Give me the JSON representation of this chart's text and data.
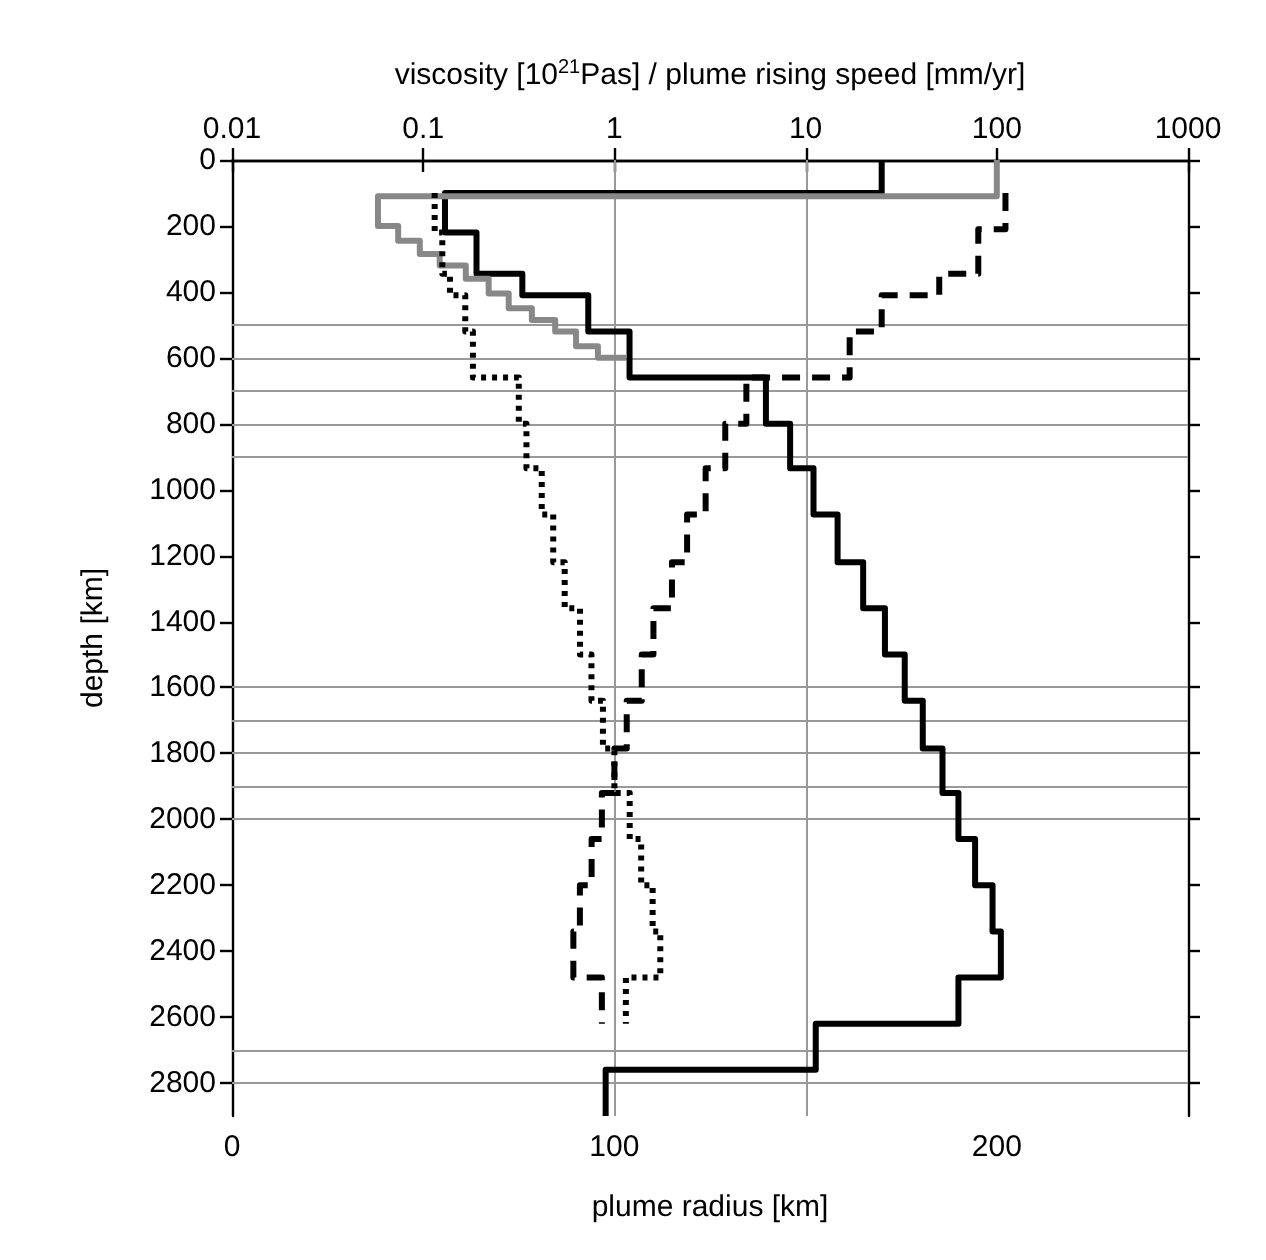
{
  "chart_data": {
    "type": "line",
    "xlabel": "plume radius [km]",
    "x2label": "viscosity [10$^{21}$Pas] / plume rising speed [mm/yr]",
    "ylabel": "depth [km]",
    "xlim": [
      0,
      250
    ],
    "xticks": [
      0,
      {
        "value": 50,
        "label": null
      },
      100,
      {
        "value": 150,
        "label": null
      },
      200,
      {
        "value": 250,
        "label": null
      }
    ],
    "x2lim": [
      0.01,
      1000
    ],
    "x2ticks": [
      0.01,
      0.1,
      1,
      10,
      100,
      1000
    ],
    "ylim": [
      2900,
      0
    ],
    "yticks": [
      0,
      200,
      400,
      600,
      800,
      1000,
      1200,
      1400,
      1600,
      1800,
      2000,
      2200,
      2400,
      2600,
      2800
    ],
    "log": "x2",
    "series": [
      {
        "axis": "x2",
        "color": "#000000",
        "line_style": "solid",
        "x": [
          25,
          25,
          0.13,
          0.13,
          0.19,
          0.19,
          0.33,
          0.33,
          0.73,
          0.73,
          1.2,
          1.2,
          6.2,
          6.2,
          8.3,
          8.3,
          11,
          11,
          14.7,
          14.7,
          20,
          20,
          26,
          26,
          33,
          33,
          41,
          41,
          52,
          52,
          63,
          63,
          77,
          77,
          95,
          95,
          105,
          105,
          63,
          63,
          11.3,
          11.3,
          0.9,
          0.9
        ],
        "values": [
          0,
          100,
          100,
          220,
          220,
          345,
          345,
          410,
          410,
          520,
          520,
          660,
          660,
          800,
          800,
          935,
          935,
          1075,
          1075,
          1220,
          1220,
          1360,
          1360,
          1500,
          1500,
          1640,
          1640,
          1785,
          1785,
          1920,
          1920,
          2060,
          2060,
          2200,
          2200,
          2340,
          2340,
          2480,
          2480,
          2620,
          2620,
          2760,
          2760,
          2900
        ]
      },
      {
        "axis": "x2",
        "color": "#888888",
        "line_style": "solid",
        "x": [
          100,
          100,
          0.058,
          0.058,
          0.074,
          0.074,
          0.096,
          0.096,
          0.122,
          0.122,
          0.167,
          0.167,
          0.22,
          0.22,
          0.28,
          0.28,
          0.37,
          0.37,
          0.49,
          0.49,
          0.63,
          0.63,
          0.82,
          0.82,
          1.15
        ],
        "values": [
          0,
          110,
          110,
          200,
          200,
          245,
          245,
          285,
          285,
          320,
          320,
          360,
          360,
          405,
          405,
          450,
          450,
          485,
          485,
          520,
          520,
          565,
          565,
          600,
          600
        ]
      },
      {
        "axis": "x2",
        "color": "#000000",
        "line_style": "dashed",
        "x": [
          111,
          111,
          80,
          80,
          50,
          50,
          25,
          25,
          17,
          17,
          4.9,
          4.9,
          3.8,
          3.8,
          3.0,
          3.0,
          2.4,
          2.4,
          2.0,
          2.0,
          1.6,
          1.6,
          1.39,
          1.39,
          1.16,
          1.16,
          1.0,
          1.0,
          0.86,
          0.86,
          0.76,
          0.76,
          0.66,
          0.66,
          0.61,
          0.61,
          0.86,
          0.86
        ],
        "values": [
          100,
          210,
          210,
          345,
          345,
          410,
          410,
          520,
          520,
          660,
          660,
          800,
          800,
          935,
          935,
          1075,
          1075,
          1220,
          1220,
          1360,
          1360,
          1500,
          1500,
          1640,
          1640,
          1785,
          1785,
          1920,
          1920,
          2060,
          2060,
          2200,
          2200,
          2340,
          2340,
          2480,
          2480,
          2620
        ]
      },
      {
        "color": "#000000",
        "line_style": "dotted",
        "x": [
          53,
          53,
          55,
          55,
          57,
          57,
          61,
          61,
          63,
          63,
          75,
          75,
          77,
          77,
          81,
          81,
          84,
          84,
          87,
          87,
          91,
          91,
          94,
          94,
          97,
          97,
          100,
          100,
          104,
          104,
          107,
          107,
          110,
          110,
          112,
          112,
          103,
          103
        ],
        "values": [
          100,
          220,
          220,
          345,
          345,
          410,
          410,
          520,
          520,
          660,
          660,
          800,
          800,
          935,
          935,
          1075,
          1075,
          1220,
          1220,
          1360,
          1360,
          1500,
          1500,
          1640,
          1640,
          1785,
          1785,
          1920,
          1920,
          2060,
          2060,
          2200,
          2200,
          2340,
          2340,
          2480,
          2480,
          2620
        ]
      }
    ],
    "ref_lines": [
      {
        "axis": "y",
        "value": 500,
        "color": "#999999"
      },
      {
        "axis": "y",
        "value": 600,
        "color": "#999999"
      },
      {
        "axis": "y",
        "value": 700,
        "color": "#999999"
      },
      {
        "axis": "y",
        "value": 800,
        "color": "#999999"
      },
      {
        "axis": "y",
        "value": 900,
        "color": "#999999"
      },
      {
        "axis": "y",
        "value": 1600,
        "color": "#999999"
      },
      {
        "axis": "y",
        "value": 1700,
        "color": "#999999"
      },
      {
        "axis": "y",
        "value": 1800,
        "color": "#999999"
      },
      {
        "axis": "y",
        "value": 1900,
        "color": "#999999"
      },
      {
        "axis": "y",
        "value": 2000,
        "color": "#999999"
      },
      {
        "axis": "y",
        "value": 2700,
        "color": "#999999"
      },
      {
        "axis": "y",
        "value": 2800,
        "color": "#999999"
      },
      {
        "axis": "x",
        "value": 100,
        "color": "#999999"
      },
      {
        "axis": "x",
        "value": 150,
        "color": "#999999"
      }
    ]
  }
}
